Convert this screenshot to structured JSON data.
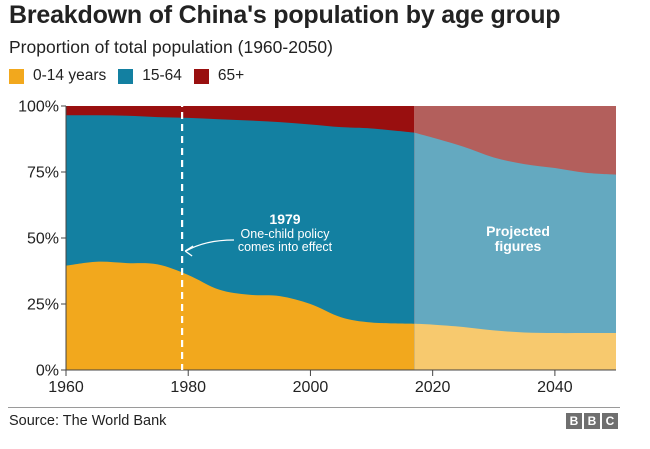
{
  "header": {
    "title": "Breakdown of China's population by age group",
    "subtitle": "Proportion of total population (1960-2050)"
  },
  "legend": [
    {
      "label": "0-14 years",
      "color": "#f2a81d"
    },
    {
      "label": "15-64",
      "color": "#1380a1"
    },
    {
      "label": "65+",
      "color": "#990f0f"
    }
  ],
  "colors": {
    "young": "#f2a81d",
    "working": "#1380a1",
    "old": "#990f0f",
    "young_proj": "#f7c96e",
    "working_proj": "#64a9c0",
    "old_proj": "#b35f5c"
  },
  "chart_data": {
    "type": "area",
    "stacked": true,
    "percent": true,
    "title": "Breakdown of China's population by age group",
    "subtitle": "Proportion of total population (1960-2050)",
    "xlabel": "",
    "ylabel": "",
    "xlim": [
      1960,
      2050
    ],
    "ylim": [
      0,
      100
    ],
    "xticks": [
      1960,
      1980,
      2000,
      2020,
      2040
    ],
    "yticks": [
      0,
      25,
      50,
      75,
      100
    ],
    "ytick_labels": [
      "0%",
      "25%",
      "50%",
      "75%",
      "100%"
    ],
    "projection_start": 2017,
    "x": [
      1960,
      1965,
      1970,
      1975,
      1980,
      1985,
      1990,
      1995,
      2000,
      2005,
      2010,
      2017,
      2020,
      2025,
      2030,
      2035,
      2040,
      2045,
      2050
    ],
    "series": [
      {
        "name": "0-14 years",
        "values": [
          39.5,
          41.0,
          40.5,
          40.0,
          36.0,
          30.5,
          28.5,
          28.0,
          25.0,
          20.0,
          18.0,
          17.5,
          17.2,
          16.3,
          15.0,
          14.2,
          14.0,
          14.0,
          14.0
        ]
      },
      {
        "name": "15-64",
        "values": [
          57.0,
          55.5,
          55.8,
          55.8,
          59.5,
          64.5,
          66.0,
          65.9,
          68.0,
          72.0,
          73.5,
          72.4,
          70.8,
          68.3,
          65.5,
          63.8,
          62.5,
          60.7,
          60.0
        ]
      },
      {
        "name": "65+",
        "values": [
          3.5,
          3.5,
          3.7,
          4.2,
          4.5,
          5.0,
          5.5,
          6.1,
          7.0,
          8.0,
          8.5,
          10.1,
          12.0,
          15.4,
          19.5,
          22.0,
          23.5,
          25.3,
          26.0
        ]
      }
    ],
    "annotations": [
      {
        "year": 1979,
        "label": "1979",
        "text": [
          "One-child policy",
          "comes into effect"
        ]
      },
      {
        "text": [
          "Projected",
          "figures"
        ]
      }
    ]
  },
  "footer": {
    "source": "Source: The World Bank",
    "logo_letters": [
      "B",
      "B",
      "C"
    ]
  }
}
